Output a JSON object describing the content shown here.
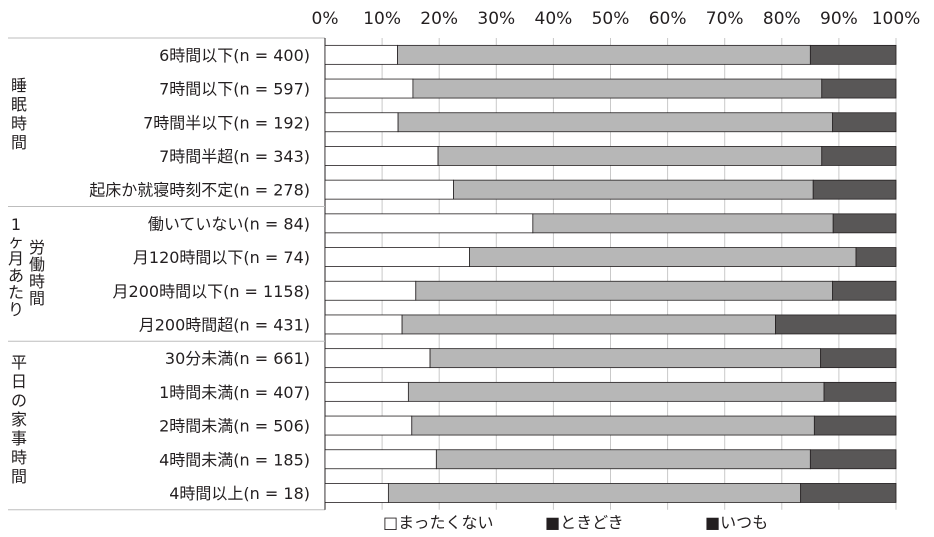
{
  "chart_data": {
    "type": "bar",
    "stacked": true,
    "orientation": "horizontal",
    "xlim": [
      0,
      100
    ],
    "x_ticks": [
      "0%",
      "10%",
      "20%",
      "30%",
      "40%",
      "50%",
      "60%",
      "70%",
      "80%",
      "90%",
      "100%"
    ],
    "grid": "vertical",
    "legend_position": "bottom",
    "colors": {
      "まったくない": "#ffffff",
      "ときどき": "#b7b7b7",
      "いつも": "#595757",
      "bar_stroke": "#231f20",
      "grid": "#c9c9c9"
    },
    "groups": [
      {
        "label": "睡眠時間",
        "rows": [
          0,
          1,
          2,
          3,
          4
        ]
      },
      {
        "label": "1ヶ月あたり労働時間",
        "rows": [
          5,
          6,
          7,
          8
        ]
      },
      {
        "label": "平日の家事時間",
        "rows": [
          9,
          10,
          11,
          12,
          13
        ]
      }
    ],
    "categories": [
      "6時間以下(n = 400)",
      "7時間以下(n = 597)",
      "7時間半以下(n = 192)",
      "7時間半超(n = 343)",
      "起床か就寝時刻不定(n = 278)",
      "働いていない(n = 84)",
      "月120時間以下(n = 74)",
      "月200時間以下(n = 1158)",
      "月200時間超(n = 431)",
      "30分未満(n = 661)",
      "1時間未満(n = 407)",
      "2時間未満(n = 506)",
      "4時間未満(n = 185)",
      "4時間以上(n = 18)"
    ],
    "series": [
      {
        "name": "まったくない",
        "legend": "□まったくない",
        "values": [
          12.7,
          15.4,
          12.8,
          19.8,
          22.5,
          36.4,
          25.3,
          15.9,
          13.5,
          18.4,
          14.6,
          15.2,
          19.5,
          11.1
        ]
      },
      {
        "name": "ときどき",
        "legend": "■ときどき",
        "values": [
          72.3,
          71.6,
          76.1,
          67.2,
          63.0,
          52.6,
          67.7,
          73.0,
          65.4,
          68.4,
          72.8,
          70.5,
          65.5,
          72.2
        ]
      },
      {
        "name": "いつも",
        "legend": "■いつも",
        "values": [
          15.0,
          13.0,
          11.1,
          13.0,
          14.5,
          11.0,
          7.0,
          11.1,
          21.1,
          13.2,
          12.6,
          14.3,
          15.0,
          16.7
        ]
      }
    ]
  }
}
